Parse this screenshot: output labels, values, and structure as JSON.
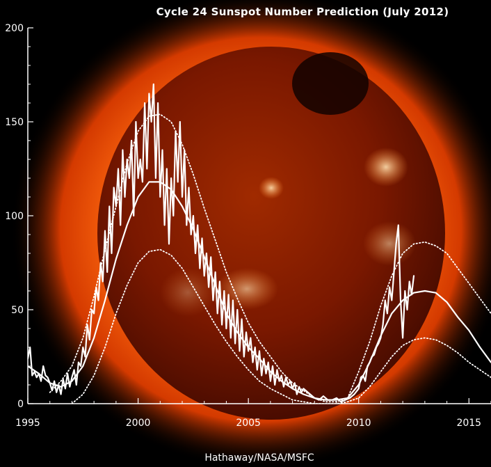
{
  "colors": {
    "background": "#000000",
    "corona_inner": "#ff6a10",
    "corona_outer": "#b82500",
    "disk": "#6e1200",
    "line": "#ffffff"
  },
  "credit": "Hathaway/NASA/MSFC",
  "chart_data": {
    "type": "line",
    "title": "Cycle 24 Sunspot Number Prediction (July 2012)",
    "xlim": [
      1995,
      2016
    ],
    "ylim": [
      0,
      200
    ],
    "x_ticks": [
      1995,
      2000,
      2005,
      2010,
      2015
    ],
    "y_ticks": [
      0,
      50,
      100,
      150,
      200
    ],
    "grid": false,
    "series": [
      {
        "style": "jagged-solid",
        "x": [
          1995.0,
          1995.1,
          1995.2,
          1995.3,
          1995.4,
          1995.5,
          1995.6,
          1995.7,
          1995.8,
          1995.9,
          1996.0,
          1996.1,
          1996.2,
          1996.3,
          1996.4,
          1996.5,
          1996.6,
          1996.7,
          1996.8,
          1996.9,
          1997.0,
          1997.1,
          1997.2,
          1997.3,
          1997.4,
          1997.5,
          1997.6,
          1997.7,
          1997.8,
          1997.9,
          1998.0,
          1998.1,
          1998.2,
          1998.3,
          1998.4,
          1998.5,
          1998.6,
          1998.7,
          1998.8,
          1998.9,
          1999.0,
          1999.1,
          1999.2,
          1999.3,
          1999.4,
          1999.5,
          1999.6,
          1999.7,
          1999.8,
          1999.9,
          2000.0,
          2000.1,
          2000.2,
          2000.3,
          2000.4,
          2000.5,
          2000.6,
          2000.7,
          2000.8,
          2000.9,
          2001.0,
          2001.1,
          2001.2,
          2001.3,
          2001.4,
          2001.5,
          2001.6,
          2001.7,
          2001.8,
          2001.9,
          2002.0,
          2002.1,
          2002.2,
          2002.3,
          2002.4,
          2002.5,
          2002.6,
          2002.7,
          2002.8,
          2002.9,
          2003.0,
          2003.1,
          2003.2,
          2003.3,
          2003.4,
          2003.5,
          2003.6,
          2003.7,
          2003.8,
          2003.9,
          2004.0,
          2004.1,
          2004.2,
          2004.3,
          2004.4,
          2004.5,
          2004.6,
          2004.7,
          2004.8,
          2004.9,
          2005.0,
          2005.1,
          2005.2,
          2005.3,
          2005.4,
          2005.5,
          2005.6,
          2005.7,
          2005.8,
          2005.9,
          2006.0,
          2006.1,
          2006.2,
          2006.3,
          2006.4,
          2006.5,
          2006.6,
          2006.7,
          2006.8,
          2006.9,
          2007.0,
          2007.1,
          2007.2,
          2007.3,
          2007.4,
          2007.5,
          2007.6,
          2007.7,
          2007.8,
          2007.9,
          2008.0,
          2008.2,
          2008.4,
          2008.6,
          2008.8,
          2009.0,
          2009.2,
          2009.4,
          2009.6,
          2009.8,
          2010.0,
          2010.1,
          2010.2,
          2010.3,
          2010.4,
          2010.5,
          2010.6,
          2010.7,
          2010.8,
          2010.9,
          2011.0,
          2011.1,
          2011.2,
          2011.3,
          2011.4,
          2011.5,
          2011.6,
          2011.7,
          2011.8,
          2011.9,
          2012.0,
          2012.1,
          2012.2,
          2012.3,
          2012.4,
          2012.5
        ],
        "y": [
          24,
          30,
          15,
          17,
          14,
          16,
          12,
          20,
          15,
          14,
          11,
          7,
          12,
          6,
          10,
          5,
          13,
          8,
          16,
          9,
          14,
          18,
          10,
          22,
          20,
          30,
          25,
          42,
          34,
          50,
          48,
          62,
          55,
          75,
          65,
          92,
          70,
          105,
          80,
          115,
          105,
          125,
          95,
          135,
          110,
          130,
          120,
          140,
          100,
          150,
          120,
          130,
          118,
          160,
          125,
          165,
          150,
          170,
          120,
          160,
          110,
          135,
          95,
          125,
          85,
          120,
          100,
          145,
          118,
          150,
          110,
          135,
          95,
          115,
          90,
          100,
          80,
          95,
          72,
          88,
          68,
          80,
          62,
          78,
          55,
          70,
          48,
          65,
          42,
          60,
          40,
          58,
          35,
          55,
          32,
          50,
          28,
          45,
          25,
          38,
          28,
          35,
          22,
          30,
          18,
          28,
          15,
          24,
          16,
          22,
          12,
          20,
          10,
          18,
          12,
          15,
          9,
          14,
          10,
          12,
          8,
          11,
          5,
          9,
          6,
          8,
          7,
          6,
          5,
          4,
          3,
          2,
          4,
          2,
          2,
          3,
          1,
          2,
          3,
          5,
          8,
          14,
          15,
          12,
          20,
          22,
          25,
          26,
          30,
          32,
          35,
          42,
          55,
          48,
          62,
          55,
          70,
          85,
          95,
          55,
          35,
          60,
          50,
          65,
          58,
          68
        ]
      },
      {
        "style": "smooth-solid",
        "x": [
          1995.0,
          1995.5,
          1996.0,
          1996.5,
          1997.0,
          1997.5,
          1998.0,
          1998.5,
          1999.0,
          1999.5,
          2000.0,
          2000.5,
          2001.0,
          2001.5,
          2002.0,
          2002.5,
          2003.0,
          2003.5,
          2004.0,
          2004.5,
          2005.0,
          2005.5,
          2006.0,
          2006.5,
          2007.0,
          2007.5,
          2008.0,
          2008.5,
          2009.0,
          2009.5,
          2010.0,
          2010.5,
          2011.0,
          2011.5,
          2012.0,
          2012.5,
          2013.0,
          2013.5,
          2014.0,
          2014.5,
          2015.0,
          2015.5,
          2016.0
        ],
        "y": [
          20,
          16,
          11,
          9,
          12,
          20,
          35,
          55,
          77,
          95,
          110,
          118,
          118,
          114,
          105,
          93,
          78,
          63,
          48,
          38,
          30,
          24,
          17,
          12,
          8,
          5,
          3,
          2,
          2,
          3,
          10,
          22,
          36,
          48,
          55,
          59,
          60,
          59,
          54,
          46,
          39,
          30,
          22
        ]
      },
      {
        "style": "dotted",
        "x": [
          1996.0,
          1996.5,
          1997.0,
          1997.5,
          1998.0,
          1998.5,
          1999.0,
          1999.5,
          2000.0,
          2000.5,
          2001.0,
          2001.5,
          2002.0,
          2002.5,
          2003.0,
          2003.5,
          2004.0,
          2004.5,
          2005.0,
          2005.5,
          2006.0,
          2006.5,
          2007.0,
          2007.5,
          2008.0,
          2008.5,
          2009.0,
          2009.5,
          2010.0,
          2010.5,
          2011.0,
          2011.5,
          2012.0,
          2012.5,
          2013.0,
          2013.5,
          2014.0,
          2014.5,
          2015.0,
          2015.5,
          2016.0
        ],
        "y": [
          6,
          12,
          20,
          35,
          57,
          82,
          105,
          128,
          145,
          153,
          154,
          150,
          138,
          122,
          104,
          87,
          70,
          56,
          43,
          33,
          25,
          17,
          11,
          7,
          3,
          1,
          1,
          3,
          17,
          33,
          52,
          68,
          80,
          85,
          86,
          84,
          80,
          72,
          64,
          56,
          48
        ]
      },
      {
        "style": "dotted",
        "x": [
          1997.0,
          1997.5,
          1998.0,
          1998.5,
          1999.0,
          1999.5,
          2000.0,
          2000.5,
          2001.0,
          2001.5,
          2002.0,
          2002.5,
          2003.0,
          2003.5,
          2004.0,
          2004.5,
          2005.0,
          2005.5,
          2006.0,
          2006.5,
          2007.0,
          2007.5,
          2008.0,
          2008.5,
          2009.0,
          2009.5,
          2010.0,
          2010.5,
          2011.0,
          2011.5,
          2012.0,
          2012.5,
          2013.0,
          2013.5,
          2014.0,
          2014.5,
          2015.0,
          2015.5,
          2016.0
        ],
        "y": [
          0,
          5,
          15,
          30,
          48,
          63,
          75,
          81,
          82,
          79,
          72,
          62,
          52,
          42,
          33,
          25,
          18,
          12,
          8,
          5,
          2,
          1,
          0,
          0,
          0,
          1,
          3,
          9,
          17,
          25,
          31,
          34,
          35,
          34,
          31,
          27,
          22,
          18,
          14
        ]
      }
    ]
  }
}
